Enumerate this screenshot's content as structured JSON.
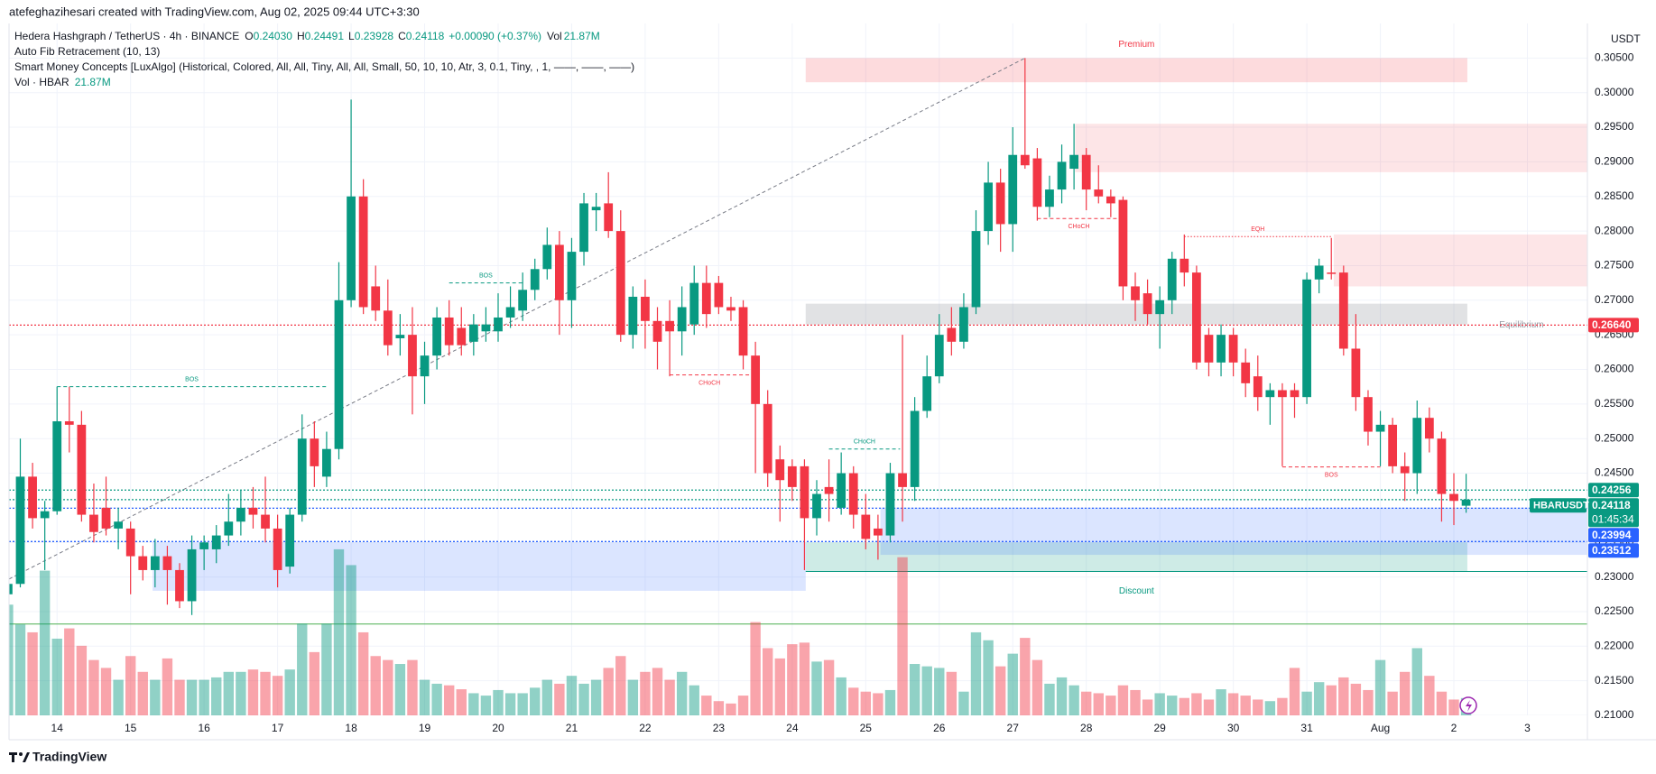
{
  "header": {
    "credit": "atefeghazihesari created with TradingView.com, Aug 02, 2025 09:44 UTC+3:30",
    "symbol": "Hedera Hashgraph / TetherUS · 4h · BINANCE",
    "ohlc": [
      {
        "k": "O",
        "v": "0.24030"
      },
      {
        "k": "H",
        "v": "0.24491"
      },
      {
        "k": "L",
        "v": "0.23928"
      },
      {
        "k": "C",
        "v": "0.24118"
      }
    ],
    "change": "+0.00090 (+0.37%)",
    "vol_label": "Vol",
    "vol_value": "21.87M",
    "indicators": [
      "Auto Fib Retracement (10, 13)",
      "Smart Money Concepts [LuxAlgo] (Historical, Colored, All, All, Tiny, All, All, Small, 50, 10, 10, Atr, 3, 0.1, Tiny, , 1, ——, ——, ——)"
    ],
    "vol_indicator": {
      "name": "Vol · HBAR",
      "value": "21.87M"
    },
    "currency": "USDT"
  },
  "footer": {
    "brand": "TradingView"
  },
  "chart_data": {
    "type": "candlestick",
    "up_color": "#089981",
    "down_color": "#f23645",
    "volume_up_color": "rgba(8,153,129,0.45)",
    "volume_down_color": "rgba(242,54,69,0.45)",
    "grid": true,
    "ylim": [
      0.21,
      0.31
    ],
    "xlim": [
      0.08,
      128.9
    ],
    "yticks": [
      {
        "value": 0.21,
        "label": "0.21000"
      },
      {
        "value": 0.215,
        "label": "0.21500"
      },
      {
        "value": 0.22,
        "label": "0.22000"
      },
      {
        "value": 0.225,
        "label": "0.22500"
      },
      {
        "value": 0.23,
        "label": "0.23000"
      },
      {
        "value": 0.235,
        "label": "0.23500"
      },
      {
        "value": 0.24,
        "label": "0.24000"
      },
      {
        "value": 0.245,
        "label": "0.24500"
      },
      {
        "value": 0.25,
        "label": "0.25000"
      },
      {
        "value": 0.255,
        "label": "0.25500"
      },
      {
        "value": 0.26,
        "label": "0.26000"
      },
      {
        "value": 0.265,
        "label": "0.26500"
      },
      {
        "value": 0.27,
        "label": "0.27000"
      },
      {
        "value": 0.275,
        "label": "0.27500"
      },
      {
        "value": 0.28,
        "label": "0.28000"
      },
      {
        "value": 0.285,
        "label": "0.28500"
      },
      {
        "value": 0.29,
        "label": "0.29000"
      },
      {
        "value": 0.295,
        "label": "0.29500"
      },
      {
        "value": 0.3,
        "label": "0.30000"
      },
      {
        "value": 0.305,
        "label": "0.30500"
      }
    ],
    "xticks": [
      {
        "value": 4,
        "label": "14"
      },
      {
        "value": 10,
        "label": "15"
      },
      {
        "value": 16,
        "label": "16"
      },
      {
        "value": 22,
        "label": "17"
      },
      {
        "value": 28,
        "label": "18"
      },
      {
        "value": 34,
        "label": "19"
      },
      {
        "value": 40,
        "label": "20"
      },
      {
        "value": 46,
        "label": "21"
      },
      {
        "value": 52,
        "label": "22"
      },
      {
        "value": 58,
        "label": "23"
      },
      {
        "value": 64,
        "label": "24"
      },
      {
        "value": 70,
        "label": "25"
      },
      {
        "value": 76,
        "label": "26"
      },
      {
        "value": 82,
        "label": "27"
      },
      {
        "value": 88,
        "label": "28"
      },
      {
        "value": 94,
        "label": "29"
      },
      {
        "value": 100,
        "label": "30"
      },
      {
        "value": 106,
        "label": "31"
      },
      {
        "value": 112,
        "label": "Aug"
      },
      {
        "value": 118,
        "label": "2"
      },
      {
        "value": 124,
        "label": "3"
      }
    ],
    "candles": [
      [
        0.2275,
        0.2295,
        0.2265,
        0.229
      ],
      [
        0.229,
        0.25,
        0.2285,
        0.2445
      ],
      [
        0.2445,
        0.2465,
        0.237,
        0.2385
      ],
      [
        0.2385,
        0.241,
        0.231,
        0.2395
      ],
      [
        0.2395,
        0.2575,
        0.239,
        0.2525
      ],
      [
        0.2525,
        0.2575,
        0.248,
        0.252
      ],
      [
        0.252,
        0.254,
        0.238,
        0.239
      ],
      [
        0.239,
        0.2435,
        0.235,
        0.2365
      ],
      [
        0.24,
        0.2445,
        0.236,
        0.237
      ],
      [
        0.237,
        0.24,
        0.234,
        0.238
      ],
      [
        0.237,
        0.238,
        0.2275,
        0.233
      ],
      [
        0.233,
        0.2345,
        0.2295,
        0.231
      ],
      [
        0.231,
        0.2355,
        0.2285,
        0.233
      ],
      [
        0.233,
        0.2345,
        0.226,
        0.231
      ],
      [
        0.231,
        0.232,
        0.2255,
        0.2265
      ],
      [
        0.2265,
        0.236,
        0.2245,
        0.234
      ],
      [
        0.234,
        0.236,
        0.231,
        0.235
      ],
      [
        0.234,
        0.2375,
        0.232,
        0.236
      ],
      [
        0.236,
        0.242,
        0.2345,
        0.238
      ],
      [
        0.238,
        0.2425,
        0.236,
        0.24
      ],
      [
        0.24,
        0.243,
        0.237,
        0.239
      ],
      [
        0.239,
        0.2445,
        0.235,
        0.237
      ],
      [
        0.237,
        0.239,
        0.2285,
        0.231
      ],
      [
        0.2315,
        0.24,
        0.2305,
        0.239
      ],
      [
        0.239,
        0.2535,
        0.238,
        0.25
      ],
      [
        0.25,
        0.2525,
        0.243,
        0.246
      ],
      [
        0.2445,
        0.251,
        0.243,
        0.2485
      ],
      [
        0.2485,
        0.2755,
        0.247,
        0.27
      ],
      [
        0.27,
        0.299,
        0.269,
        0.285
      ],
      [
        0.285,
        0.2875,
        0.268,
        0.269
      ],
      [
        0.272,
        0.275,
        0.267,
        0.2685
      ],
      [
        0.2685,
        0.273,
        0.262,
        0.2635
      ],
      [
        0.2645,
        0.268,
        0.262,
        0.265
      ],
      [
        0.265,
        0.269,
        0.2535,
        0.259
      ],
      [
        0.259,
        0.264,
        0.255,
        0.262
      ],
      [
        0.262,
        0.269,
        0.26,
        0.2675
      ],
      [
        0.2675,
        0.27,
        0.262,
        0.2635
      ],
      [
        0.266,
        0.269,
        0.262,
        0.2635
      ],
      [
        0.264,
        0.268,
        0.262,
        0.2665
      ],
      [
        0.2655,
        0.269,
        0.264,
        0.2665
      ],
      [
        0.2655,
        0.271,
        0.264,
        0.2675
      ],
      [
        0.2675,
        0.272,
        0.266,
        0.269
      ],
      [
        0.2685,
        0.274,
        0.267,
        0.2715
      ],
      [
        0.2715,
        0.276,
        0.27,
        0.2745
      ],
      [
        0.2745,
        0.2805,
        0.273,
        0.278
      ],
      [
        0.278,
        0.28,
        0.265,
        0.27
      ],
      [
        0.27,
        0.279,
        0.266,
        0.277
      ],
      [
        0.277,
        0.2855,
        0.275,
        0.284
      ],
      [
        0.283,
        0.2855,
        0.28,
        0.2835
      ],
      [
        0.284,
        0.2885,
        0.279,
        0.28
      ],
      [
        0.28,
        0.283,
        0.264,
        0.265
      ],
      [
        0.265,
        0.272,
        0.263,
        0.2705
      ],
      [
        0.2705,
        0.273,
        0.263,
        0.267
      ],
      [
        0.267,
        0.269,
        0.26,
        0.264
      ],
      [
        0.267,
        0.27,
        0.259,
        0.2655
      ],
      [
        0.2655,
        0.272,
        0.262,
        0.269
      ],
      [
        0.2665,
        0.275,
        0.265,
        0.2725
      ],
      [
        0.2725,
        0.275,
        0.266,
        0.268
      ],
      [
        0.2725,
        0.2735,
        0.268,
        0.269
      ],
      [
        0.269,
        0.2705,
        0.267,
        0.2685
      ],
      [
        0.269,
        0.27,
        0.26,
        0.262
      ],
      [
        0.262,
        0.264,
        0.245,
        0.255
      ],
      [
        0.255,
        0.257,
        0.243,
        0.245
      ],
      [
        0.247,
        0.249,
        0.238,
        0.244
      ],
      [
        0.246,
        0.247,
        0.241,
        0.243
      ],
      [
        0.246,
        0.247,
        0.231,
        0.2385
      ],
      [
        0.2385,
        0.244,
        0.236,
        0.242
      ],
      [
        0.243,
        0.247,
        0.238,
        0.242
      ],
      [
        0.24,
        0.248,
        0.239,
        0.245
      ],
      [
        0.245,
        0.246,
        0.237,
        0.239
      ],
      [
        0.239,
        0.242,
        0.234,
        0.2355
      ],
      [
        0.237,
        0.239,
        0.2325,
        0.236
      ],
      [
        0.236,
        0.2465,
        0.235,
        0.245
      ],
      [
        0.245,
        0.265,
        0.238,
        0.243
      ],
      [
        0.243,
        0.256,
        0.241,
        0.254
      ],
      [
        0.254,
        0.262,
        0.253,
        0.259
      ],
      [
        0.259,
        0.268,
        0.258,
        0.265
      ],
      [
        0.266,
        0.269,
        0.262,
        0.264
      ],
      [
        0.264,
        0.271,
        0.263,
        0.269
      ],
      [
        0.269,
        0.283,
        0.268,
        0.28
      ],
      [
        0.28,
        0.29,
        0.278,
        0.287
      ],
      [
        0.287,
        0.289,
        0.277,
        0.281
      ],
      [
        0.281,
        0.295,
        0.277,
        0.291
      ],
      [
        0.291,
        0.305,
        0.289,
        0.2895
      ],
      [
        0.2905,
        0.292,
        0.2815,
        0.2835
      ],
      [
        0.2835,
        0.288,
        0.282,
        0.286
      ],
      [
        0.286,
        0.2925,
        0.284,
        0.29
      ],
      [
        0.289,
        0.2955,
        0.286,
        0.291
      ],
      [
        0.291,
        0.292,
        0.283,
        0.286
      ],
      [
        0.286,
        0.2895,
        0.284,
        0.285
      ],
      [
        0.285,
        0.286,
        0.282,
        0.284
      ],
      [
        0.2845,
        0.285,
        0.27,
        0.272
      ],
      [
        0.272,
        0.274,
        0.267,
        0.27
      ],
      [
        0.271,
        0.273,
        0.2665,
        0.268
      ],
      [
        0.268,
        0.272,
        0.263,
        0.27
      ],
      [
        0.27,
        0.277,
        0.268,
        0.276
      ],
      [
        0.276,
        0.2795,
        0.272,
        0.274
      ],
      [
        0.274,
        0.275,
        0.26,
        0.261
      ],
      [
        0.265,
        0.266,
        0.259,
        0.261
      ],
      [
        0.261,
        0.2665,
        0.259,
        0.265
      ],
      [
        0.265,
        0.266,
        0.259,
        0.261
      ],
      [
        0.261,
        0.263,
        0.256,
        0.258
      ],
      [
        0.259,
        0.262,
        0.254,
        0.256
      ],
      [
        0.256,
        0.258,
        0.252,
        0.257
      ],
      [
        0.257,
        0.258,
        0.246,
        0.256
      ],
      [
        0.257,
        0.258,
        0.253,
        0.256
      ],
      [
        0.256,
        0.274,
        0.255,
        0.273
      ],
      [
        0.273,
        0.276,
        0.271,
        0.275
      ],
      [
        0.274,
        0.279,
        0.273,
        0.2738
      ],
      [
        0.274,
        0.275,
        0.262,
        0.263
      ],
      [
        0.263,
        0.268,
        0.254,
        0.256
      ],
      [
        0.256,
        0.257,
        0.249,
        0.251
      ],
      [
        0.251,
        0.254,
        0.246,
        0.252
      ],
      [
        0.252,
        0.253,
        0.245,
        0.246
      ],
      [
        0.246,
        0.248,
        0.241,
        0.245
      ],
      [
        0.245,
        0.2555,
        0.242,
        0.253
      ],
      [
        0.253,
        0.2545,
        0.248,
        0.25
      ],
      [
        0.25,
        0.251,
        0.238,
        0.242
      ],
      [
        0.242,
        0.245,
        0.2375,
        0.241
      ],
      [
        0.2403,
        0.24491,
        0.23928,
        0.24118
      ]
    ],
    "volume": [
      140,
      115,
      105,
      183,
      97,
      110,
      88,
      70,
      60,
      45,
      75,
      55,
      45,
      72,
      45,
      45,
      45,
      48,
      55,
      55,
      58,
      55,
      50,
      58,
      116,
      80,
      116,
      210,
      190,
      105,
      75,
      70,
      65,
      70,
      45,
      40,
      38,
      33,
      28,
      25,
      32,
      28,
      28,
      35,
      45,
      40,
      50,
      40,
      45,
      60,
      75,
      45,
      55,
      60,
      45,
      55,
      38,
      25,
      18,
      15,
      25,
      118,
      85,
      72,
      90,
      92,
      68,
      70,
      48,
      35,
      30,
      28,
      32,
      200,
      65,
      62,
      60,
      55,
      30,
      105,
      95,
      62,
      78,
      98,
      70,
      40,
      48,
      38,
      30,
      28,
      25,
      38,
      32,
      20,
      28,
      25,
      22,
      28,
      20,
      33,
      28,
      25,
      20,
      18,
      22,
      60,
      30,
      42,
      38,
      48,
      40,
      32,
      70,
      30,
      55,
      85,
      50,
      30,
      20,
      21.87
    ],
    "zones": [
      {
        "label": "Premium",
        "x0": 65.1,
        "x1": 119.1,
        "top": 0.305,
        "bottom": 0.3015,
        "color": "rgba(242,54,69,0.18)",
        "text_color": "#f23645"
      },
      {
        "x0": 87.1,
        "x1": 128.9,
        "top": 0.2955,
        "bottom": 0.2885,
        "color": "rgba(242,54,69,0.13)"
      },
      {
        "x0": 108.2,
        "x1": 128.9,
        "top": 0.2795,
        "bottom": 0.272,
        "color": "rgba(242,54,69,0.13)"
      },
      {
        "label": "Equilibrium",
        "x0": 65.1,
        "x1": 119.1,
        "top": 0.2695,
        "bottom": 0.2665,
        "color": "rgba(120,123,134,0.22)",
        "text_color": "#9598a1"
      },
      {
        "label": "Discount",
        "x0": 65.1,
        "x1": 119.1,
        "top": 0.235,
        "bottom": 0.2308,
        "color": "rgba(8,153,129,0.2)",
        "text_color": "#089981"
      },
      {
        "x0": 11.8,
        "x1": 65.1,
        "top": 0.235,
        "bottom": 0.228,
        "color": "rgba(41,98,255,0.17)"
      },
      {
        "x0": 71.2,
        "x1": 128.9,
        "top": 0.24,
        "bottom": 0.2332,
        "color": "rgba(41,98,255,0.17)"
      }
    ],
    "levels": [
      {
        "value": 0.2232,
        "x0": 0.08,
        "color": "#4caf50"
      },
      {
        "value": 0.2308,
        "x0": 65.1,
        "color": "#089981"
      }
    ],
    "fib_line": {
      "x0": 0.08,
      "y0": 0.2297,
      "x1": 83,
      "y1": 0.305,
      "color": "#787b86"
    },
    "structures": [
      {
        "label": "BOS",
        "x0": 4,
        "x1": 26,
        "price": 0.2575,
        "color": "#089981",
        "style": "dashed"
      },
      {
        "label": "BOS",
        "x0": 36,
        "x1": 42,
        "price": 0.2725,
        "color": "#089981",
        "style": "dashed"
      },
      {
        "label": "CHoCH",
        "x0": 54,
        "x1": 60.5,
        "price": 0.2592,
        "color": "#f23645",
        "style": "dashed"
      },
      {
        "label": "CHoCH",
        "x0": 67,
        "x1": 72.8,
        "price": 0.2485,
        "color": "#089981",
        "style": "dashed"
      },
      {
        "label": "CHoCH",
        "x0": 84,
        "x1": 90.8,
        "price": 0.2818,
        "color": "#f23645",
        "style": "dashed"
      },
      {
        "label": "EQH",
        "x0": 96,
        "x1": 108,
        "price": 0.2792,
        "color": "#f23645",
        "style": "dotted"
      },
      {
        "label": "BOS",
        "x0": 104,
        "x1": 112,
        "price": 0.2459,
        "color": "#f23645",
        "style": "dashed"
      }
    ],
    "price_labels": [
      {
        "value": 0.2664,
        "label": "0.26640",
        "color": "#f23645"
      },
      {
        "value": 0.24256,
        "label": "0.24256",
        "color": "#089981"
      },
      {
        "value": 0.24118,
        "label": "0.24118",
        "name": "HBARUSDT",
        "countdown": "01:45:34",
        "color": "#089981"
      },
      {
        "value": 0.23994,
        "label": "0.23994",
        "color": "#2962ff"
      },
      {
        "value": 0.23512,
        "label": "0.23512",
        "color": "#2962ff"
      }
    ]
  }
}
